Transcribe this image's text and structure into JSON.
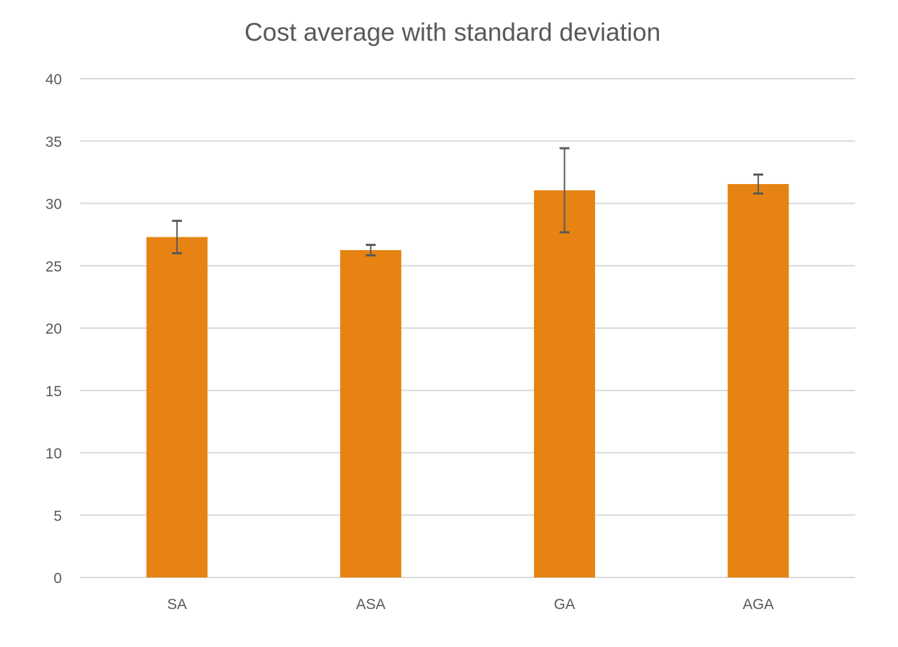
{
  "chart_data": {
    "type": "bar",
    "title": "Cost average with standard deviation",
    "xlabel": "",
    "ylabel": "",
    "categories": [
      "SA",
      "ASA",
      "GA",
      "AGA"
    ],
    "values": [
      27.3,
      26.25,
      31.05,
      31.55
    ],
    "error": [
      1.3,
      0.42,
      3.37,
      0.76
    ],
    "ylim": [
      0,
      40
    ],
    "yticks": [
      0,
      5,
      10,
      15,
      20,
      25,
      30,
      35,
      40
    ],
    "grid": true,
    "legend": "none",
    "colors": {
      "bar": "#E68312",
      "error_bar": "#595959",
      "grid": "#D9D9D9"
    }
  }
}
